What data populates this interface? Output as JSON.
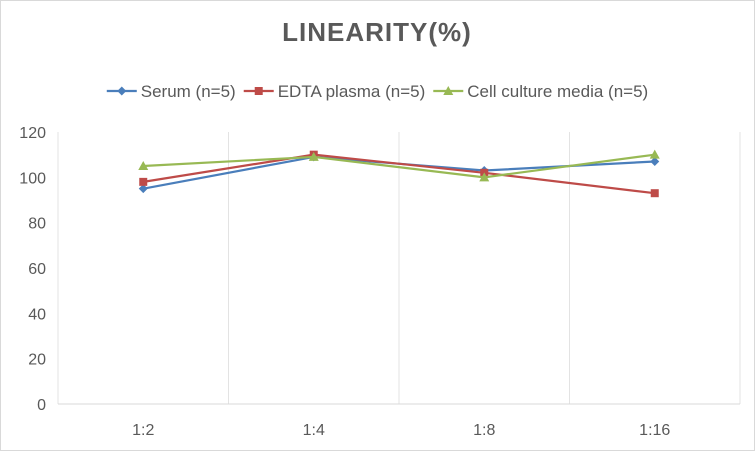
{
  "chart_data": {
    "type": "line",
    "title": "LINEARITY(%)",
    "xlabel": "",
    "ylabel": "",
    "categories": [
      "1:2",
      "1:4",
      "1:8",
      "1:16"
    ],
    "ylim": [
      0,
      120
    ],
    "yticks": [
      0,
      20,
      40,
      60,
      80,
      100,
      120
    ],
    "grid": "vertical",
    "legend": "top",
    "series": [
      {
        "name": "Serum (n=5)",
        "values": [
          95,
          109,
          103,
          107
        ],
        "color": "#4a7ebb",
        "marker": "diamond"
      },
      {
        "name": "EDTA plasma (n=5)",
        "values": [
          98,
          110,
          102,
          93
        ],
        "color": "#be4b48",
        "marker": "square"
      },
      {
        "name": "Cell culture media (n=5)",
        "values": [
          105,
          109,
          100,
          110
        ],
        "color": "#98b954",
        "marker": "triangle"
      }
    ]
  }
}
